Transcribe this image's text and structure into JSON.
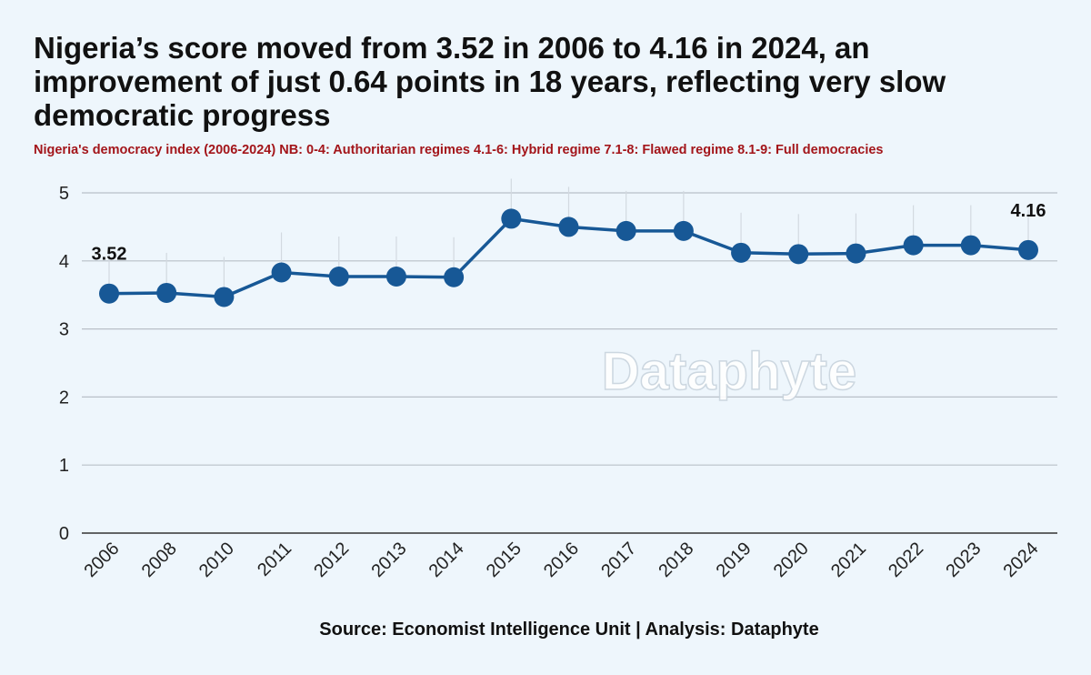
{
  "header": {
    "title": "Nigeria’s score moved from 3.52 in 2006 to 4.16 in 2024, an improvement of just 0.64 points in 18 years, reflecting very slow democratic progress",
    "subtitle": "Nigeria's democracy index (2006-2024) NB: 0-4: Authoritarian regimes 4.1-6: Hybrid regime 7.1-8: Flawed regime 8.1-9: Full democracies"
  },
  "footer": {
    "source": "Source: Economist Intelligence Unit | Analysis: Dataphyte"
  },
  "watermark": "Dataphyte",
  "colors": {
    "line": "#175896",
    "grid": "#b9c0c8",
    "axis": "#333333",
    "title": "#111111",
    "subtitle": "#a3151a",
    "background": "#eef6fc"
  },
  "chart_data": {
    "type": "line",
    "x": [
      "2006",
      "2008",
      "2010",
      "2011",
      "2012",
      "2013",
      "2014",
      "2015",
      "2016",
      "2017",
      "2018",
      "2019",
      "2020",
      "2021",
      "2022",
      "2023",
      "2024"
    ],
    "series": [
      {
        "values": [
          3.52,
          3.53,
          3.47,
          3.83,
          3.77,
          3.77,
          3.76,
          4.62,
          4.5,
          4.44,
          4.44,
          4.12,
          4.1,
          4.11,
          4.23,
          4.23,
          4.16
        ]
      }
    ],
    "ylim": [
      0,
      5
    ],
    "yticks": [
      0,
      1,
      2,
      3,
      4,
      5
    ],
    "grid": true,
    "annotations": [
      {
        "index": 0,
        "label": "3.52"
      },
      {
        "index": 16,
        "label": "4.16"
      }
    ]
  }
}
